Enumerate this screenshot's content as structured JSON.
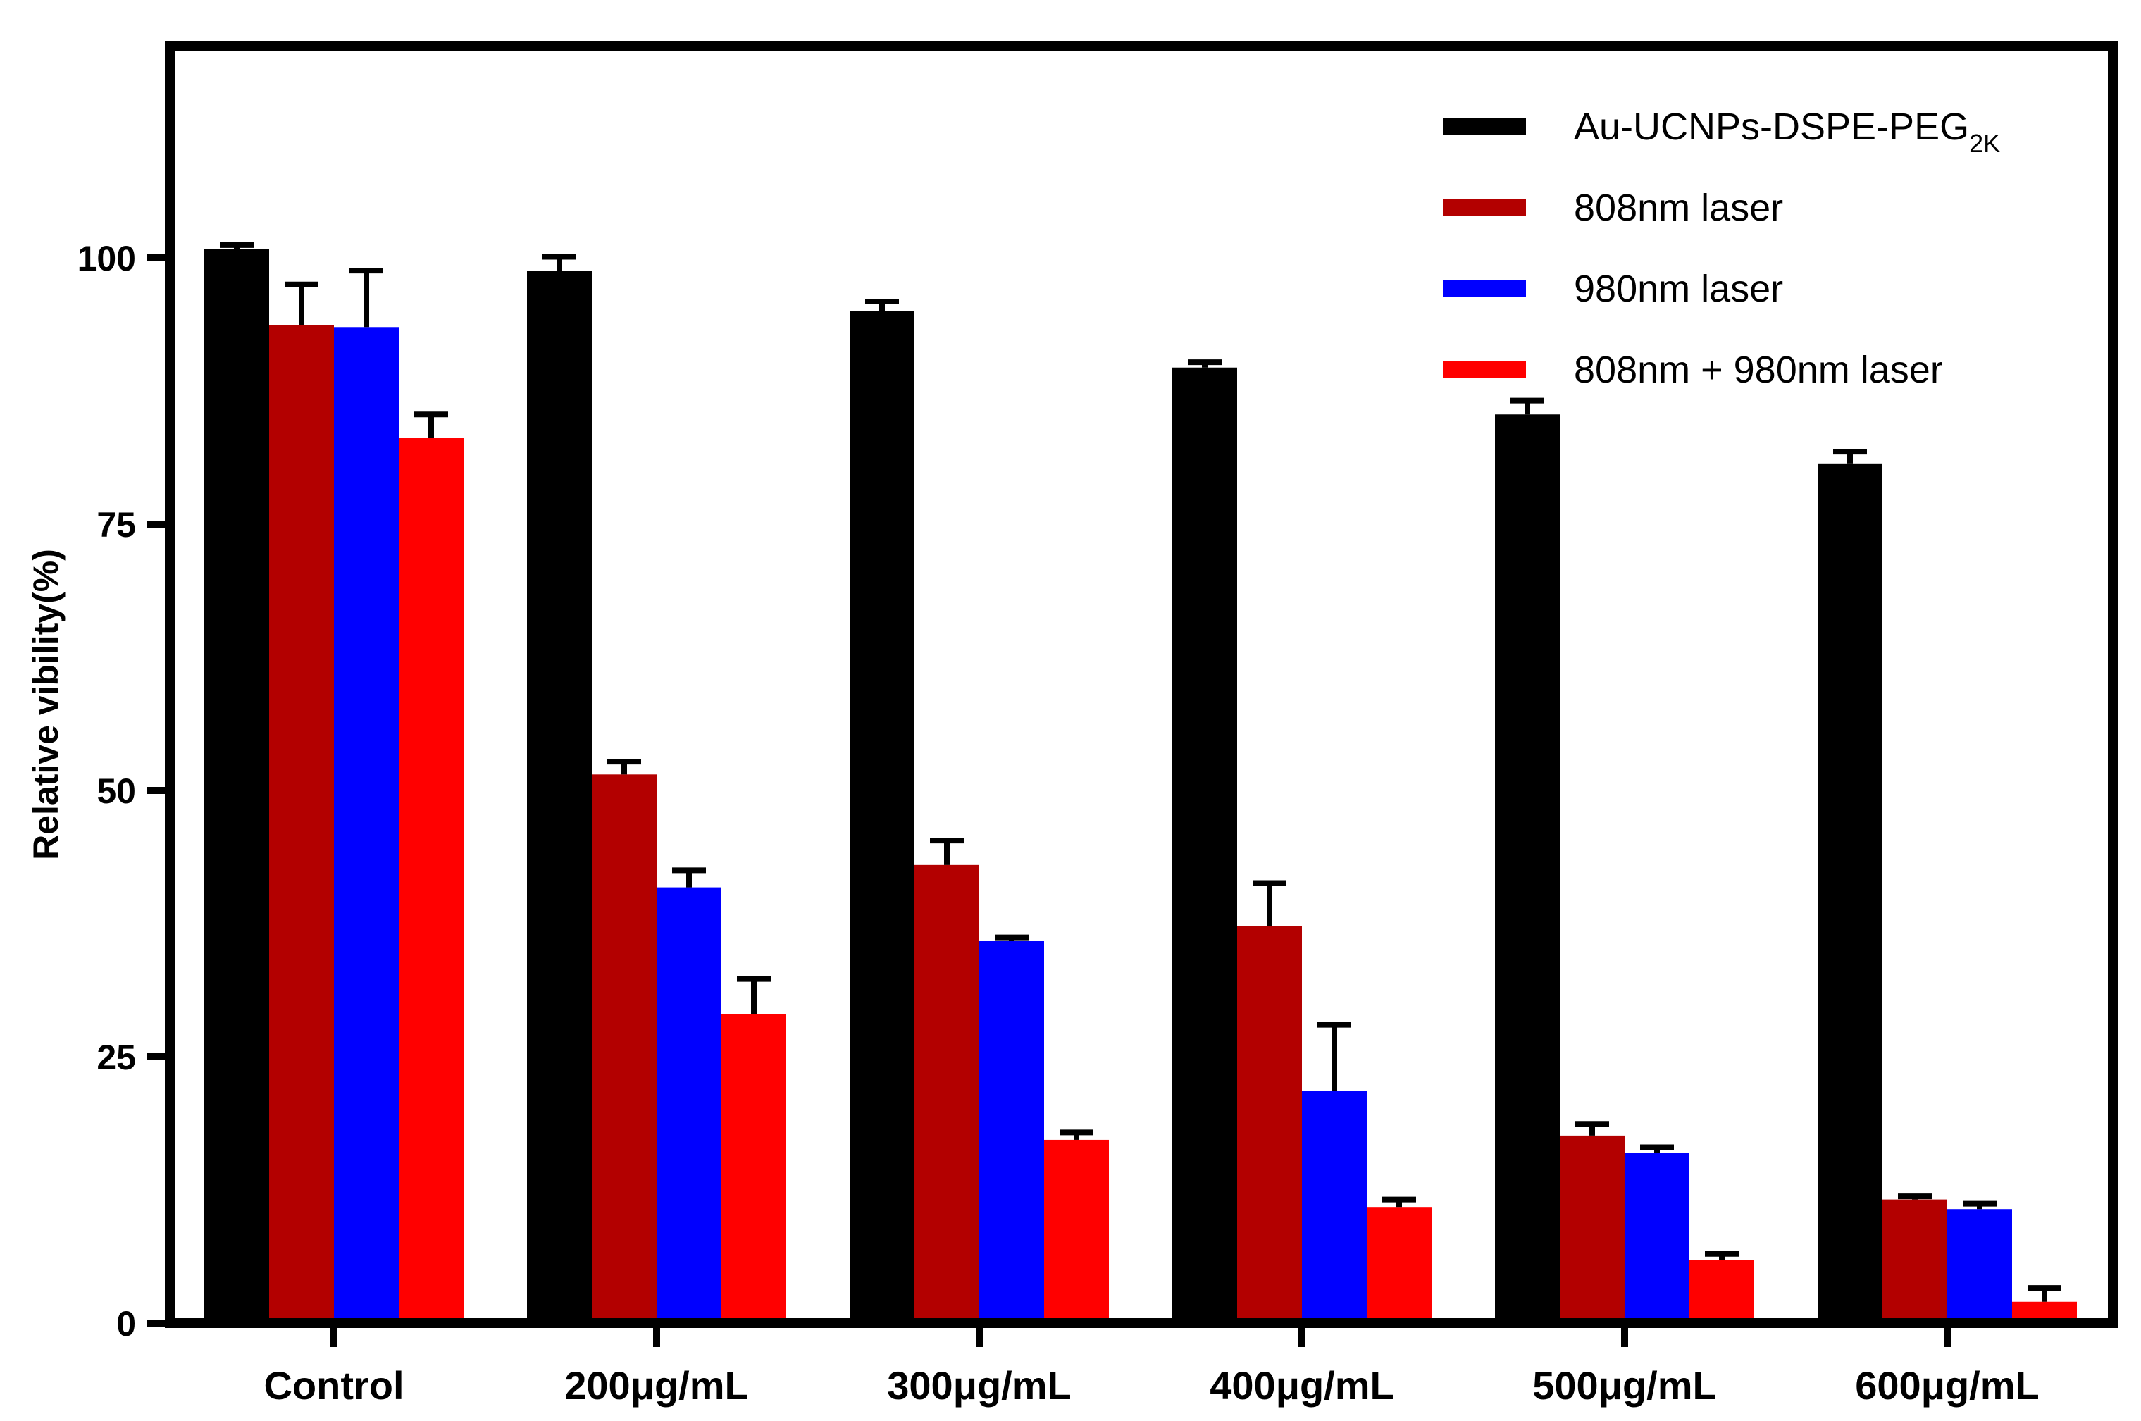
{
  "chart_data": {
    "type": "bar",
    "title": "",
    "xlabel": "",
    "ylabel": "Relative vibility(%)",
    "ylim": [
      0,
      120
    ],
    "yticks": [
      0,
      25,
      50,
      75,
      100
    ],
    "grid": false,
    "legend_position": "top-right",
    "categories": [
      "Control",
      "200μg/mL",
      "300μg/mL",
      "400μg/mL",
      "500μg/mL",
      "600μg/mL"
    ],
    "series": [
      {
        "name": "Au-UCNPs-DSPE-PEG",
        "name_subscript": "2K",
        "color": "#000000",
        "values": [
          100.8,
          98.8,
          95.0,
          89.7,
          85.3,
          80.7
        ],
        "errors": [
          0.4,
          1.3,
          0.9,
          0.5,
          1.3,
          1.1
        ]
      },
      {
        "name": "808nm laser",
        "name_subscript": "",
        "color": "#b30000",
        "values": [
          93.7,
          51.5,
          43.0,
          37.3,
          17.6,
          11.6
        ],
        "errors": [
          3.8,
          1.2,
          2.3,
          4.0,
          1.1,
          0.3
        ]
      },
      {
        "name": "980nm laser",
        "name_subscript": "",
        "color": "#0000ff",
        "values": [
          93.5,
          40.9,
          35.9,
          21.8,
          16.0,
          10.7
        ],
        "errors": [
          5.3,
          1.6,
          0.3,
          6.2,
          0.5,
          0.5
        ]
      },
      {
        "name": "808nm + 980nm laser",
        "name_subscript": "",
        "color": "#ff0000",
        "values": [
          83.1,
          29.0,
          17.2,
          10.9,
          5.9,
          2.0
        ],
        "errors": [
          2.2,
          3.3,
          0.7,
          0.7,
          0.6,
          1.3
        ]
      }
    ]
  }
}
